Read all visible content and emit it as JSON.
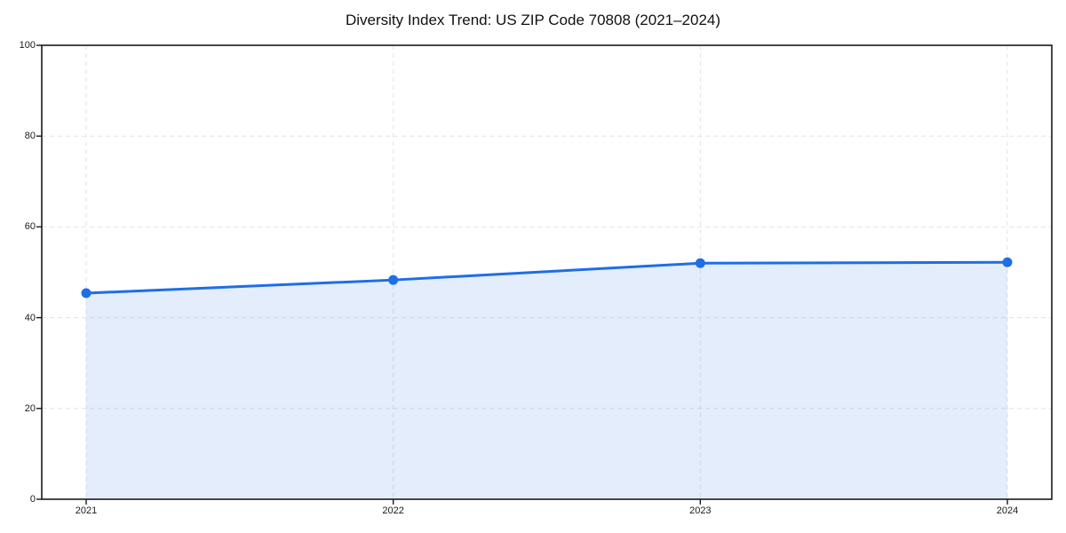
{
  "page": {
    "background_color": "#ffffff"
  },
  "chart_data": {
    "type": "area",
    "title": "Diversity Index Trend: US ZIP Code 70808 (2021–2024)",
    "x": [
      "2021",
      "2022",
      "2023",
      "2024"
    ],
    "series": [
      {
        "name": "Diversity Index",
        "values": [
          45.4,
          48.3,
          52.0,
          52.2
        ]
      }
    ],
    "xlabel": "",
    "ylabel": "",
    "ylim": [
      0,
      100
    ],
    "yticks": [
      0,
      20,
      40,
      60,
      80,
      100
    ],
    "grid": true,
    "grid_style": "dashed",
    "legend": "none",
    "marker": "circle",
    "line_color": "#1e6ee6",
    "marker_color": "#1e6ee6",
    "fill_color": "rgba(30, 110, 230, 0.12)",
    "grid_color": "#e3e3e3",
    "axis_color": "#1a1a1a",
    "tick_label_color": "#1a1a1a"
  }
}
